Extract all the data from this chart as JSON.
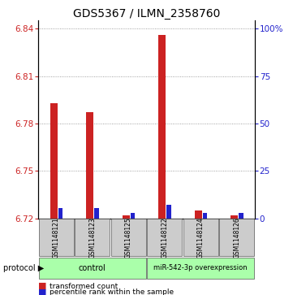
{
  "title": "GDS5367 / ILMN_2358760",
  "samples": [
    "GSM1148121",
    "GSM1148123",
    "GSM1148125",
    "GSM1148122",
    "GSM1148124",
    "GSM1148126"
  ],
  "red_values": [
    6.793,
    6.787,
    6.722,
    6.836,
    6.725,
    6.722
  ],
  "blue_values": [
    6.7265,
    6.7265,
    6.7235,
    6.7285,
    6.7235,
    6.7235
  ],
  "ylim_min": 6.72,
  "ylim_max": 6.845,
  "yticks_left": [
    6.84,
    6.81,
    6.78,
    6.75,
    6.72
  ],
  "yticks_right": [
    100,
    75,
    50,
    25,
    0
  ],
  "yticks_right_vals": [
    6.84,
    6.81,
    6.78,
    6.75,
    6.72
  ],
  "red_color": "#cc2222",
  "blue_color": "#2222cc",
  "red_bar_width": 0.2,
  "blue_bar_width": 0.12,
  "green_color": "#aaffaa",
  "sample_bg_color": "#cccccc",
  "legend_items": [
    "transformed count",
    "percentile rank within the sample"
  ],
  "title_fontsize": 10,
  "tick_fontsize": 7.5,
  "dotted_grid_color": "#888888",
  "group1_label": "control",
  "group2_label": "miR-542-3p overexpression"
}
